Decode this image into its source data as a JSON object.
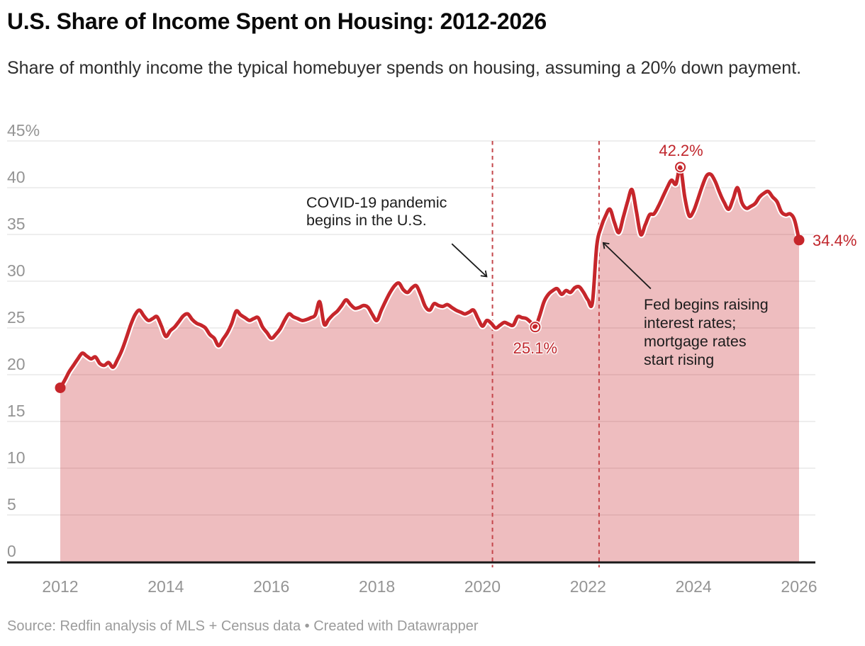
{
  "header": {
    "title": "U.S. Share of Income Spent on Housing: 2012-2026",
    "subtitle": "Share of monthly income the typical homebuyer spends on housing, assuming a 20% down payment."
  },
  "footer": {
    "source": "Source: Redfin analysis of MLS + Census data • Created with Datawrapper"
  },
  "chart_data": {
    "type": "area",
    "title": "U.S. Share of Income Spent on Housing: 2012-2026",
    "unit": "%",
    "frequency": "monthly",
    "start_year": 2012,
    "end_year": 2026,
    "ylim": [
      0,
      45
    ],
    "grid": true,
    "values": [
      18.6,
      19.4,
      20.3,
      21.0,
      21.7,
      22.3,
      22.0,
      21.7,
      21.9,
      21.2,
      21.0,
      21.3,
      20.8,
      21.6,
      22.6,
      23.9,
      25.3,
      26.4,
      26.9,
      26.3,
      25.8,
      26.0,
      26.2,
      25.2,
      24.1,
      24.7,
      25.1,
      25.7,
      26.3,
      26.5,
      25.9,
      25.5,
      25.3,
      25.0,
      24.3,
      23.9,
      23.1,
      23.8,
      24.5,
      25.5,
      26.8,
      26.4,
      26.1,
      25.8,
      26.0,
      26.1,
      25.1,
      24.5,
      23.9,
      24.3,
      24.9,
      25.8,
      26.5,
      26.2,
      26.0,
      25.8,
      25.9,
      26.1,
      26.4,
      27.8,
      25.4,
      25.9,
      26.4,
      26.8,
      27.4,
      28.0,
      27.5,
      27.1,
      27.2,
      27.4,
      27.2,
      26.4,
      25.8,
      26.9,
      27.9,
      28.8,
      29.5,
      29.8,
      29.1,
      28.8,
      29.3,
      29.5,
      28.5,
      27.3,
      26.9,
      27.6,
      27.4,
      27.3,
      27.5,
      27.2,
      26.9,
      26.7,
      26.5,
      26.7,
      26.9,
      26.0,
      25.2,
      25.8,
      25.5,
      25.0,
      25.3,
      25.6,
      25.4,
      25.3,
      26.2,
      26.1,
      26.0,
      25.6,
      25.1,
      26.3,
      27.8,
      28.6,
      29.0,
      29.2,
      28.6,
      29.0,
      28.8,
      29.3,
      29.4,
      28.8,
      28.0,
      27.7,
      33.8,
      35.8,
      37.0,
      37.7,
      36.3,
      35.2,
      36.8,
      38.5,
      39.8,
      37.5,
      35.0,
      36.0,
      37.1,
      37.2,
      38.0,
      39.0,
      40.0,
      40.8,
      40.4,
      42.2,
      39.0,
      37.0,
      37.5,
      38.8,
      40.2,
      41.3,
      41.4,
      40.6,
      39.4,
      38.4,
      37.7,
      38.8,
      40.0,
      38.4,
      37.8,
      38.0,
      38.3,
      39.0,
      39.4,
      39.6,
      39.0,
      38.5,
      37.4,
      37.1,
      37.2,
      36.5,
      34.4
    ],
    "ytick_values": [
      0,
      5,
      10,
      15,
      20,
      25,
      30,
      35,
      40,
      45
    ],
    "ytick_labels": [
      "0",
      "5",
      "10",
      "15",
      "20",
      "25",
      "30",
      "35",
      "40",
      "45%"
    ],
    "xtick_years": [
      2012,
      2014,
      2016,
      2018,
      2020,
      2022,
      2024,
      2026
    ],
    "event_lines": [
      {
        "name": "covid-line",
        "x": 2020.19
      },
      {
        "name": "fed-line",
        "x": 2022.21
      }
    ],
    "annotations": {
      "covid": {
        "text": "COVID-19 pandemic\nbegins in the U.S.",
        "arrow": {
          "x1": 2019.42,
          "y1": 34.0,
          "x2": 2020.08,
          "y2": 30.5
        }
      },
      "fed": {
        "text": "Fed begins raising\ninterest rates;\nmortgage rates\nstart rising",
        "arrow": {
          "x1": 2023.19,
          "y1": 29.2,
          "x2": 2022.29,
          "y2": 34.1
        }
      }
    },
    "point_labels": {
      "start": {
        "month_index": 0,
        "value": 18.6,
        "label": "",
        "marker": "dot"
      },
      "dip": {
        "month_index": 108,
        "value": 25.1,
        "label": "25.1%",
        "marker": "open-circle"
      },
      "peak": {
        "month_index": 141,
        "value": 42.2,
        "label": "42.2%",
        "marker": "open-circle"
      },
      "end": {
        "month_index": 168,
        "value": 34.4,
        "label": "34.4%",
        "marker": "dot"
      }
    },
    "colors": {
      "line": "#c6262b",
      "fill": "rgba(198,38,43,0.30)",
      "event_line": "#c4464b",
      "value_label": "#c0262c",
      "grid": "#dcdcdc",
      "baseline": "#1a1a1a",
      "axis_text": "#949494",
      "annotation_text": "#1c1c1c",
      "annotation_arrow": "#1c1c1c"
    },
    "legend": null
  }
}
